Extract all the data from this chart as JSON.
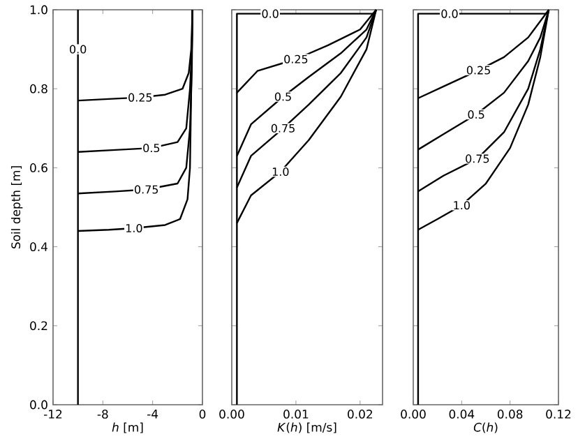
{
  "chart_data": [
    {
      "type": "line",
      "xlabel": "*h* [m]",
      "ylabel": "Soil depth [m]",
      "xlim": [
        -12,
        0
      ],
      "ylim": [
        0,
        1
      ],
      "xticks": [
        -12,
        -8,
        -4,
        0
      ],
      "yticks": [
        {
          "value": 0,
          "label": "0.0"
        },
        0.2,
        0.4,
        0.6,
        0.8,
        {
          "value": 1,
          "label": "1.0"
        }
      ],
      "series": [
        {
          "name": "0.0",
          "color": "#000000",
          "x": [
            -10,
            -10,
            -10,
            -10
          ],
          "values": [
            0,
            0.5,
            0.9,
            1.0
          ]
        },
        {
          "name": "0.25",
          "color": "#000000",
          "x": [
            -10,
            -7,
            -5,
            -3,
            -1.6,
            -1.1,
            -0.9,
            -0.8
          ],
          "values": [
            0.77,
            0.775,
            0.778,
            0.785,
            0.8,
            0.84,
            0.9,
            1.0
          ]
        },
        {
          "name": "0.5",
          "color": "#000000",
          "x": [
            -10,
            -7,
            -4.1,
            -2,
            -1.3,
            -1.0,
            -0.85,
            -0.8
          ],
          "values": [
            0.64,
            0.645,
            0.65,
            0.665,
            0.7,
            0.8,
            0.9,
            1.0
          ]
        },
        {
          "name": "0.75",
          "color": "#000000",
          "x": [
            -10,
            -7,
            -4.5,
            -2,
            -1.3,
            -1.0,
            -0.85,
            -0.8
          ],
          "values": [
            0.535,
            0.54,
            0.545,
            0.56,
            0.6,
            0.7,
            0.85,
            1.0
          ]
        },
        {
          "name": "1.0",
          "color": "#000000",
          "x": [
            -10,
            -7.5,
            -5.5,
            -3,
            -1.8,
            -1.2,
            -1.0,
            -0.9,
            -0.8
          ],
          "values": [
            0.44,
            0.443,
            0.447,
            0.455,
            0.47,
            0.52,
            0.6,
            0.8,
            1.0
          ]
        }
      ]
    },
    {
      "type": "line",
      "xlabel": "*K*(*h*) [m/s]",
      "xlim": [
        0,
        0.0235
      ],
      "ylim": [
        0,
        1
      ],
      "tick_labels": "x",
      "xticks": [
        {
          "value": 0,
          "label": "0.00"
        },
        0.01,
        0.02
      ],
      "yticks": [
        0,
        0.2,
        0.4,
        0.6,
        0.8,
        1
      ],
      "series": [
        {
          "name": "0.0",
          "color": "#000000",
          "x": [
            0.0008,
            0.0008,
            0.006,
            0.022
          ],
          "values": [
            0,
            0.99,
            0.99,
            0.99
          ]
        },
        {
          "name": "0.25",
          "color": "#000000",
          "x": [
            0.0008,
            0.004,
            0.01,
            0.015,
            0.02,
            0.0225
          ],
          "values": [
            0.79,
            0.845,
            0.875,
            0.91,
            0.95,
            1.0
          ]
        },
        {
          "name": "0.5",
          "color": "#000000",
          "x": [
            0.0008,
            0.003,
            0.008,
            0.012,
            0.017,
            0.021,
            0.0225
          ],
          "values": [
            0.63,
            0.71,
            0.78,
            0.83,
            0.89,
            0.95,
            1.0
          ]
        },
        {
          "name": "0.75",
          "color": "#000000",
          "x": [
            0.0008,
            0.003,
            0.008,
            0.012,
            0.017,
            0.021,
            0.0225
          ],
          "values": [
            0.55,
            0.63,
            0.7,
            0.76,
            0.84,
            0.93,
            1.0
          ]
        },
        {
          "name": "1.0",
          "color": "#000000",
          "x": [
            0.0008,
            0.003,
            0.0076,
            0.012,
            0.017,
            0.021,
            0.0225
          ],
          "values": [
            0.46,
            0.53,
            0.59,
            0.67,
            0.78,
            0.9,
            1.0
          ]
        }
      ]
    },
    {
      "type": "line",
      "xlabel": "*C*(*h*)",
      "xlim": [
        0,
        0.12
      ],
      "ylim": [
        0,
        1
      ],
      "tick_labels": "x",
      "xticks": [
        {
          "value": 0,
          "label": "0.00"
        },
        0.04,
        0.08,
        0.12
      ],
      "yticks": [
        0,
        0.2,
        0.4,
        0.6,
        0.8,
        1
      ],
      "series": [
        {
          "name": "0.0",
          "color": "#000000",
          "x": [
            0.004,
            0.004,
            0.03,
            0.11
          ],
          "values": [
            0,
            0.99,
            0.99,
            0.99
          ]
        },
        {
          "name": "0.25",
          "color": "#000000",
          "x": [
            0.004,
            0.025,
            0.054,
            0.075,
            0.095,
            0.112
          ],
          "values": [
            0.776,
            0.806,
            0.847,
            0.88,
            0.93,
            1.0
          ]
        },
        {
          "name": "0.5",
          "color": "#000000",
          "x": [
            0.004,
            0.025,
            0.052,
            0.075,
            0.095,
            0.105,
            0.112
          ],
          "values": [
            0.646,
            0.685,
            0.735,
            0.79,
            0.87,
            0.93,
            1.0
          ]
        },
        {
          "name": "0.75",
          "color": "#000000",
          "x": [
            0.004,
            0.025,
            0.053,
            0.075,
            0.095,
            0.105,
            0.112
          ],
          "values": [
            0.54,
            0.58,
            0.623,
            0.69,
            0.8,
            0.9,
            1.0
          ]
        },
        {
          "name": "1.0",
          "color": "#000000",
          "x": [
            0.004,
            0.02,
            0.04,
            0.06,
            0.08,
            0.095,
            0.105,
            0.112
          ],
          "values": [
            0.443,
            0.47,
            0.505,
            0.56,
            0.65,
            0.76,
            0.88,
            1.0
          ]
        }
      ]
    }
  ]
}
